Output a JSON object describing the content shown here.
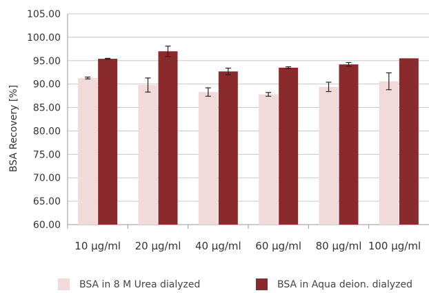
{
  "chart_data": {
    "type": "bar",
    "ylabel": "BSA Recovery [%]",
    "xlabel": "",
    "ylim": [
      60,
      105
    ],
    "yticks": [
      "60.00",
      "65.00",
      "70.00",
      "75.00",
      "80.00",
      "85.00",
      "90.00",
      "95.00",
      "100.00",
      "105.00"
    ],
    "categories": [
      "10 µg/ml",
      "20 µg/ml",
      "40 µg/ml",
      "60 µg/ml",
      "80 µg/ml",
      "100 µg/ml"
    ],
    "grid": true,
    "legend_position": "bottom",
    "series": [
      {
        "name": "BSA in 8 M Urea dialyzed",
        "color": "#f2dada",
        "values": [
          91.3,
          89.8,
          88.3,
          87.8,
          89.4,
          90.6
        ],
        "errors": [
          0.2,
          1.5,
          0.9,
          0.4,
          1.0,
          1.8
        ]
      },
      {
        "name": "BSA in Aqua deion. dialyzed",
        "color": "#8b2a2c",
        "values": [
          95.4,
          97.0,
          92.7,
          93.5,
          94.2,
          95.5
        ],
        "errors": [
          0.1,
          1.1,
          0.7,
          0.2,
          0.4,
          0.0
        ]
      }
    ]
  }
}
